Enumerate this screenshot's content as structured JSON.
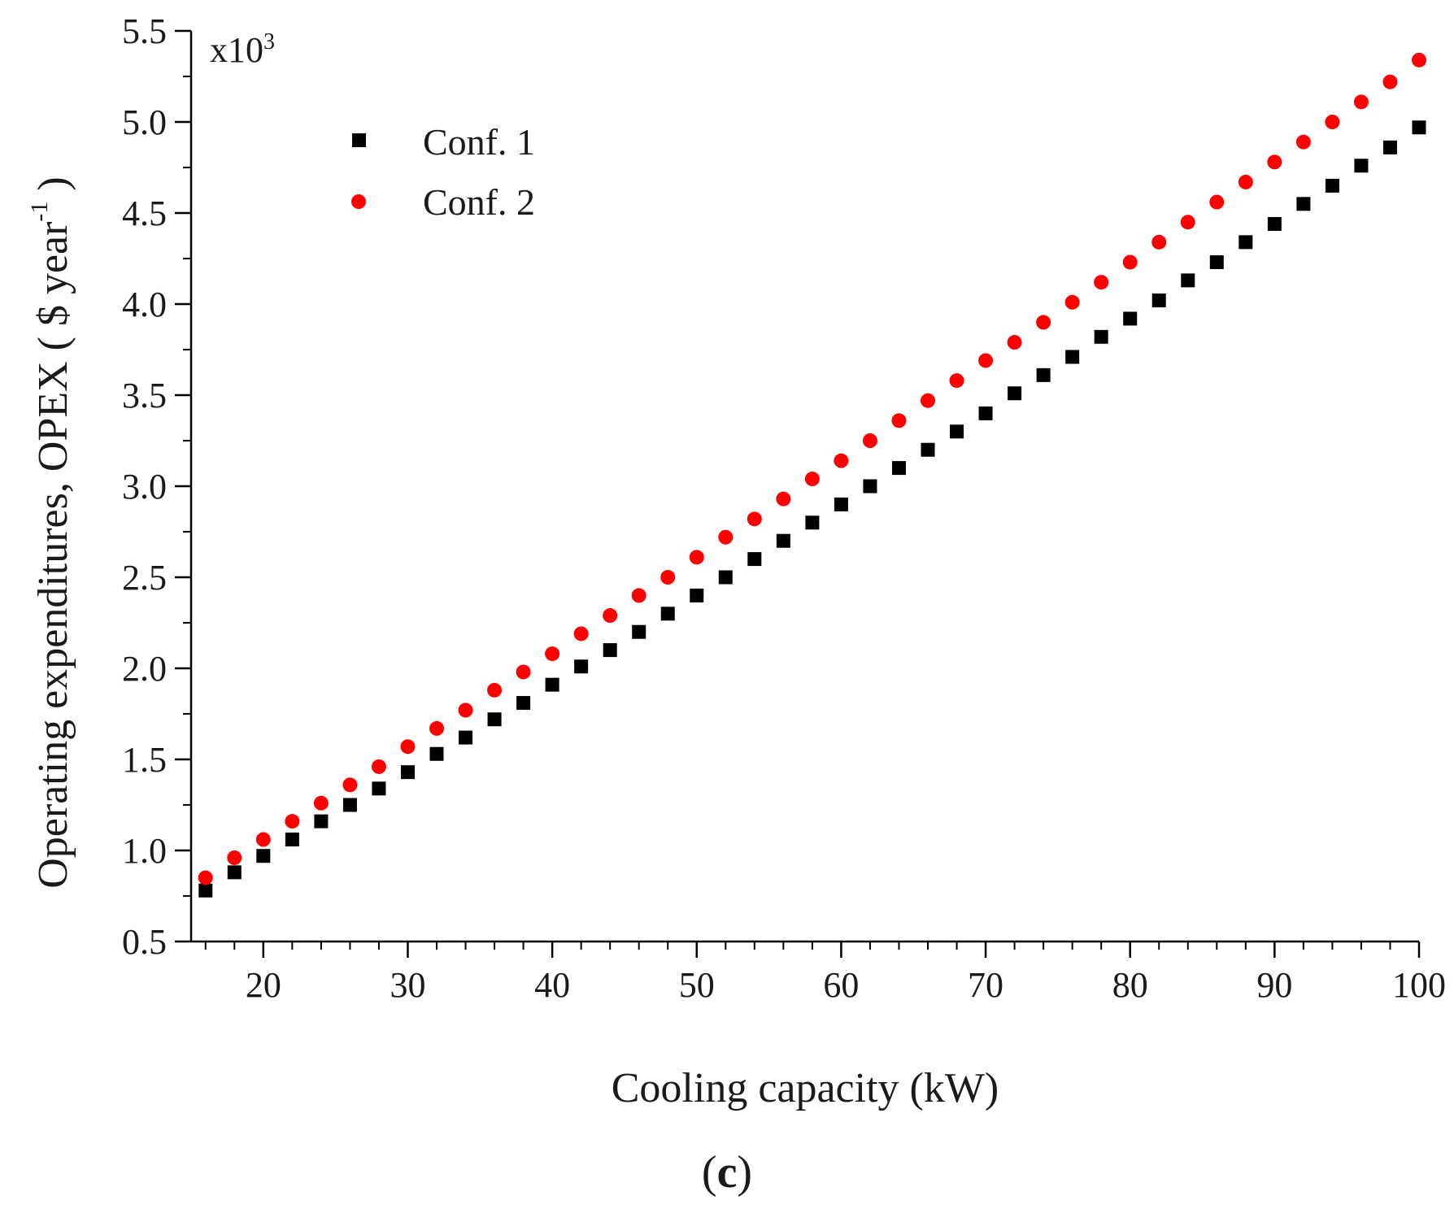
{
  "chart_data": {
    "type": "scatter",
    "title": "",
    "xlabel": "Cooling capacity (kW)",
    "ylabel": "Operating expenditures, OPEX ( $ year",
    "ylabel_superscript": "-1",
    "ylabel_close": " )",
    "y_multiplier": "x10",
    "y_multiplier_exp": "3",
    "panel_label": "c",
    "panel_label_open": "(",
    "panel_label_close": ")",
    "xlim": [
      15,
      100
    ],
    "ylim": [
      0.5,
      5.5
    ],
    "xticks": [
      20,
      30,
      40,
      50,
      60,
      70,
      80,
      90,
      100
    ],
    "yticks": [
      "0.5",
      "1.0",
      "1.5",
      "2.0",
      "2.5",
      "3.0",
      "3.5",
      "4.0",
      "4.5",
      "5.0",
      "5.5"
    ],
    "x": [
      16,
      18,
      20,
      22,
      24,
      26,
      28,
      30,
      32,
      34,
      36,
      38,
      40,
      42,
      44,
      46,
      48,
      50,
      52,
      54,
      56,
      58,
      60,
      62,
      64,
      66,
      68,
      70,
      72,
      74,
      76,
      78,
      80,
      82,
      84,
      86,
      88,
      90,
      92,
      94,
      96,
      98,
      100
    ],
    "series": [
      {
        "name": "Conf. 1",
        "marker": "square",
        "color": "#000000",
        "values": [
          0.78,
          0.88,
          0.97,
          1.06,
          1.16,
          1.25,
          1.34,
          1.43,
          1.53,
          1.62,
          1.72,
          1.81,
          1.91,
          2.01,
          2.1,
          2.2,
          2.3,
          2.4,
          2.5,
          2.6,
          2.7,
          2.8,
          2.9,
          3.0,
          3.1,
          3.2,
          3.3,
          3.4,
          3.51,
          3.61,
          3.71,
          3.82,
          3.92,
          4.02,
          4.13,
          4.23,
          4.34,
          4.44,
          4.55,
          4.65,
          4.76,
          4.86,
          4.97
        ]
      },
      {
        "name": "Conf. 2",
        "marker": "circle",
        "color": "#ff0000",
        "values": [
          0.85,
          0.96,
          1.06,
          1.16,
          1.26,
          1.36,
          1.46,
          1.57,
          1.67,
          1.77,
          1.88,
          1.98,
          2.08,
          2.19,
          2.29,
          2.4,
          2.5,
          2.61,
          2.72,
          2.82,
          2.93,
          3.04,
          3.14,
          3.25,
          3.36,
          3.47,
          3.58,
          3.69,
          3.79,
          3.9,
          4.01,
          4.12,
          4.23,
          4.34,
          4.45,
          4.56,
          4.67,
          4.78,
          4.89,
          5.0,
          5.11,
          5.22,
          5.34
        ]
      }
    ],
    "legend_position": "top-left",
    "grid": false
  }
}
